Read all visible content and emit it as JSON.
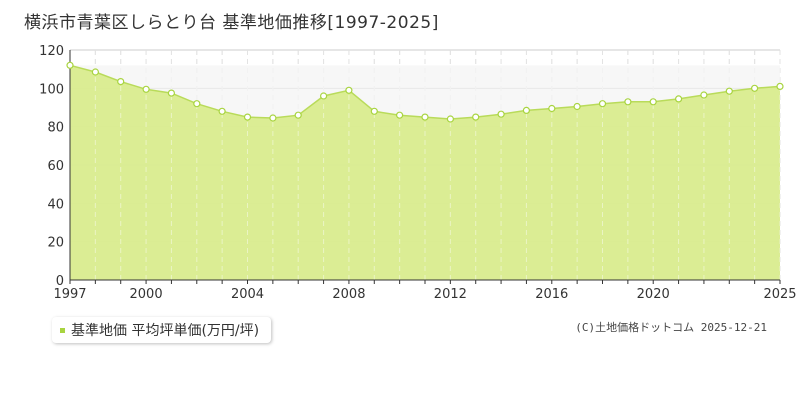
{
  "header": {
    "title": "横浜市青葉区しらとり台 基準地価推移[1997-2025]"
  },
  "legend": {
    "label": "基準地価 平均坪単価(万円/坪)"
  },
  "credit": "(C)土地価格ドットコム 2025-12-21",
  "colors": {
    "fill": "#d9ec8e",
    "line": "#b9db5a",
    "marker": "#a8d440"
  },
  "chart_data": {
    "type": "area",
    "x": [
      1997,
      1998,
      1999,
      2000,
      2001,
      2002,
      2003,
      2004,
      2005,
      2006,
      2007,
      2008,
      2009,
      2010,
      2011,
      2012,
      2013,
      2014,
      2015,
      2016,
      2017,
      2018,
      2019,
      2020,
      2021,
      2022,
      2023,
      2024,
      2025
    ],
    "series": [
      {
        "name": "基準地価 平均坪単価(万円/坪)",
        "values": [
          112,
          108.5,
          103.5,
          99.5,
          97.5,
          92,
          88,
          85,
          84.5,
          86,
          96,
          99,
          88,
          86,
          85,
          84,
          85,
          86.5,
          88.5,
          89.5,
          90.5,
          92,
          93,
          93,
          94.5,
          96.5,
          98.5,
          100,
          101
        ]
      }
    ],
    "xlim": [
      1997,
      2025
    ],
    "ylim": [
      0,
      120
    ],
    "yticks": [
      0,
      20,
      40,
      60,
      80,
      100,
      120
    ],
    "xticks": [
      1997,
      2000,
      2004,
      2008,
      2012,
      2016,
      2020,
      2025
    ],
    "xlabel": "",
    "ylabel": "",
    "grid": true,
    "legend_position": "bottom-left"
  }
}
